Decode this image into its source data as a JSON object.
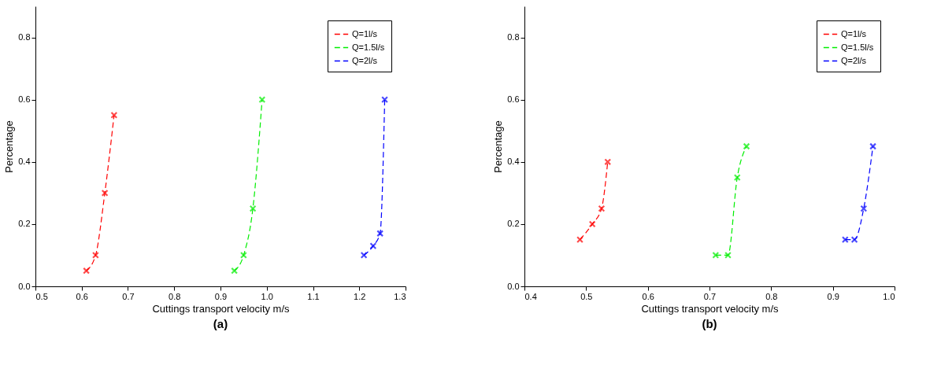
{
  "chart_data": [
    {
      "type": "line",
      "title": "(a)",
      "xlabel": "Cuttings transport velocity m/s",
      "ylabel": "Percentage",
      "xlim": [
        0.5,
        1.3
      ],
      "ylim": [
        0,
        0.9
      ],
      "xticks": [
        0.5,
        0.6,
        0.7,
        0.8,
        0.9,
        {
          "value": 1,
          "label": "1.0"
        },
        1.1,
        1.2,
        1.3
      ],
      "yticks": [
        {
          "value": 0,
          "label": "0.0"
        },
        0.2,
        0.4,
        0.6,
        0.8
      ],
      "grid": false,
      "legend": "top right",
      "marker": "cross",
      "line_style": "dashed",
      "series": [
        {
          "name": "Q=1l/s",
          "color": "#ff0000",
          "x": [
            0.61,
            0.63,
            0.65,
            0.67
          ],
          "values": [
            0.05,
            0.1,
            0.3,
            0.55
          ]
        },
        {
          "name": "Q=1.5l/s",
          "color": "#00ee00",
          "x": [
            0.93,
            0.95,
            0.97,
            0.99
          ],
          "values": [
            0.05,
            0.1,
            0.25,
            0.6
          ]
        },
        {
          "name": "Q=2l/s",
          "color": "#0000ff",
          "x": [
            1.21,
            1.23,
            1.245,
            1.255
          ],
          "values": [
            0.1,
            0.13,
            0.17,
            0.6
          ]
        }
      ]
    },
    {
      "type": "line",
      "title": "(b)",
      "xlabel": "Cuttings transport velocity m/s",
      "ylabel": "Percentage",
      "xlim": [
        0.4,
        1.0
      ],
      "ylim": [
        0,
        0.9
      ],
      "xticks": [
        0.4,
        0.5,
        0.6,
        0.7,
        0.8,
        0.9,
        {
          "value": 1,
          "label": "1.0"
        }
      ],
      "yticks": [
        {
          "value": 0,
          "label": "0.0"
        },
        0.2,
        0.4,
        0.6,
        0.8
      ],
      "grid": false,
      "legend": "top right",
      "marker": "cross",
      "line_style": "dashed",
      "series": [
        {
          "name": "Q=1l/s",
          "color": "#ff0000",
          "x": [
            0.49,
            0.51,
            0.525,
            0.535
          ],
          "values": [
            0.15,
            0.2,
            0.25,
            0.4
          ]
        },
        {
          "name": "Q=1.5l/s",
          "color": "#00ee00",
          "x": [
            0.71,
            0.73,
            0.745,
            0.76
          ],
          "values": [
            0.1,
            0.1,
            0.35,
            0.45
          ]
        },
        {
          "name": "Q=2l/s",
          "color": "#0000ff",
          "x": [
            0.92,
            0.935,
            0.95,
            0.965
          ],
          "values": [
            0.15,
            0.15,
            0.25,
            0.45
          ]
        }
      ]
    }
  ]
}
